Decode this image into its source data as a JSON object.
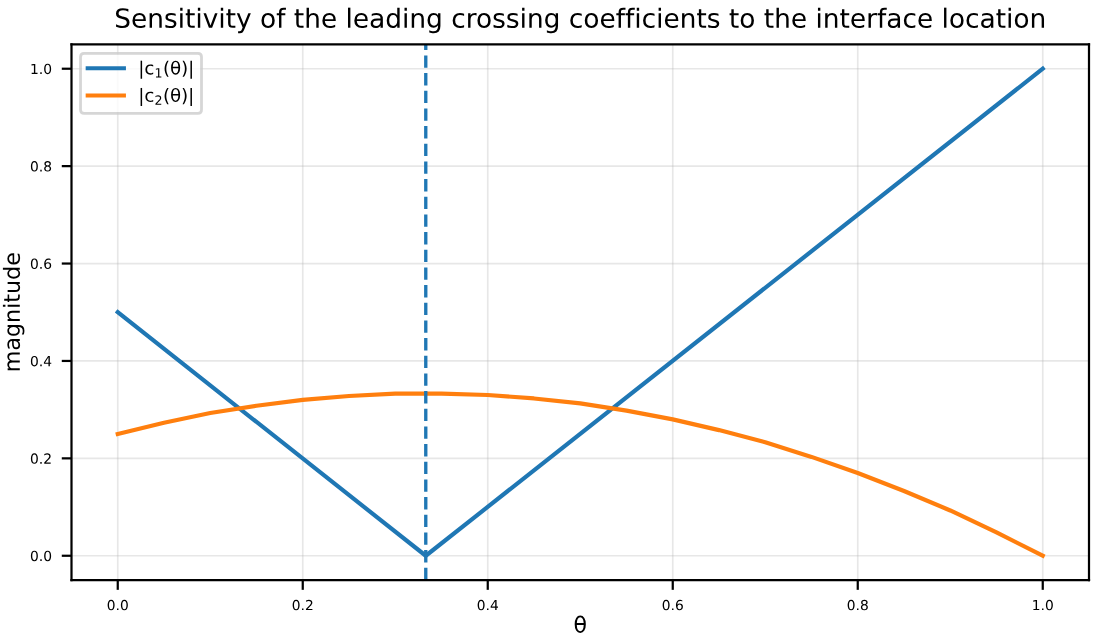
{
  "chart_data": {
    "type": "line",
    "title": "Sensitivity of the leading crossing coefficients to the interface location",
    "xlabel": "θ",
    "ylabel": "magnitude",
    "series": [
      {
        "name": "|c$_{1}$(θ)|",
        "color": "#1f77b4",
        "x": [
          0,
          0.333,
          1
        ],
        "values": [
          0.5,
          0.0,
          1.0
        ]
      },
      {
        "name": "|c$_{2}$(θ)|",
        "color": "#ff7f0e",
        "x": [
          0,
          0.05,
          0.1,
          0.15,
          0.2,
          0.25,
          0.3,
          0.333,
          0.35,
          0.4,
          0.45,
          0.5,
          0.55,
          0.6,
          0.65,
          0.7,
          0.75,
          0.8,
          0.85,
          0.9,
          0.95,
          1.0
        ],
        "values": [
          0.25,
          0.273,
          0.293,
          0.308,
          0.32,
          0.328,
          0.333,
          0.333,
          0.333,
          0.33,
          0.323,
          0.313,
          0.298,
          0.28,
          0.258,
          0.233,
          0.203,
          0.17,
          0.133,
          0.093,
          0.048,
          0.0
        ]
      }
    ],
    "ref_lines": [
      {
        "axis": "x",
        "value": 0.333,
        "color": "#1f77b4",
        "line_style": "dashed"
      }
    ],
    "xlim": [
      -0.05,
      1.05
    ],
    "ylim": [
      -0.05,
      1.05
    ],
    "xticks": [
      {
        "value": 0,
        "label": "0.0"
      },
      0.2,
      0.4,
      0.6,
      0.8,
      {
        "value": 1,
        "label": "1.0"
      }
    ],
    "yticks": [
      {
        "value": 0,
        "label": "0.0"
      },
      0.2,
      0.4,
      0.6,
      0.8,
      {
        "value": 1,
        "label": "1.0"
      }
    ],
    "grid": true,
    "legend": "top left"
  }
}
